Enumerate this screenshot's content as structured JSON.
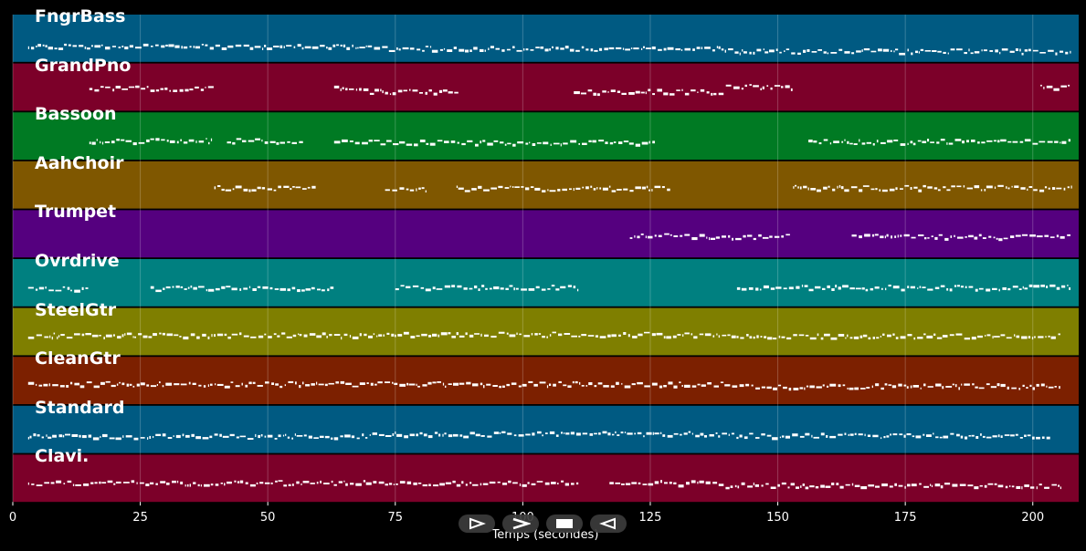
{
  "chart_data": {
    "type": "piano-roll",
    "xlabel": "Temps (secondes)",
    "xlim": [
      0,
      209
    ],
    "xticks": [
      0,
      25,
      50,
      75,
      100,
      125,
      150,
      175,
      200
    ],
    "grid": true,
    "tracks": [
      {
        "name": "FngrBass",
        "color": "#005a82",
        "active": [
          [
            3,
            207.5
          ]
        ],
        "pitch": [
          0.65,
          0.72,
          0.8
        ]
      },
      {
        "name": "GrandPno",
        "color": "#7c0029",
        "active": [
          [
            15,
            39.5
          ],
          [
            63,
            87.5
          ],
          [
            110,
            153
          ],
          [
            201.5,
            207.5
          ]
        ],
        "pitch": [
          0.45,
          0.55,
          0.4
        ]
      },
      {
        "name": "Bassoon",
        "color": "#007a23",
        "active": [
          [
            15,
            39
          ],
          [
            42,
            57
          ],
          [
            63,
            126
          ],
          [
            156,
            207.5
          ]
        ],
        "pitch": [
          0.55,
          0.6,
          0.58
        ]
      },
      {
        "name": "AahChoir",
        "color": "#7f5700",
        "active": [
          [
            39.5,
            59.5
          ],
          [
            73,
            81
          ],
          [
            87,
            129
          ],
          [
            153,
            207.5
          ]
        ],
        "pitch": [
          0.5,
          0.52,
          0.5
        ]
      },
      {
        "name": "Trumpet",
        "color": "#55007f",
        "active": [
          [
            121,
            152.5
          ],
          [
            164.5,
            207.5
          ]
        ],
        "pitch": [
          0.55,
          0.48,
          0.5
        ]
      },
      {
        "name": "Ovrdrive",
        "color": "#008080",
        "active": [
          [
            3,
            15
          ],
          [
            27,
            63
          ],
          [
            75,
            111
          ],
          [
            142,
            207.5
          ]
        ],
        "pitch": [
          0.58,
          0.55,
          0.55
        ]
      },
      {
        "name": "SteelGtr",
        "color": "#7f7f00",
        "active": [
          [
            3,
            205.5
          ]
        ],
        "pitch": [
          0.52,
          0.5,
          0.55
        ]
      },
      {
        "name": "CleanGtr",
        "color": "#7c2000",
        "active": [
          [
            3,
            205.5
          ]
        ],
        "pitch": [
          0.52,
          0.52,
          0.58
        ]
      },
      {
        "name": "Standard",
        "color": "#005a82",
        "active": [
          [
            3,
            203.5
          ]
        ],
        "pitch": [
          0.62,
          0.55,
          0.6
        ]
      },
      {
        "name": "Clavi.",
        "color": "#7c0029",
        "active": [
          [
            3,
            111
          ],
          [
            117,
            205.5
          ]
        ],
        "pitch": [
          0.55,
          0.55,
          0.62
        ]
      }
    ]
  },
  "controls": [
    {
      "label": "play",
      "icon": "play-icon"
    },
    {
      "label": "fast-forward",
      "icon": "fast-forward-icon"
    },
    {
      "label": "stop",
      "icon": "stop-icon"
    },
    {
      "label": "rewind",
      "icon": "rewind-icon"
    }
  ]
}
